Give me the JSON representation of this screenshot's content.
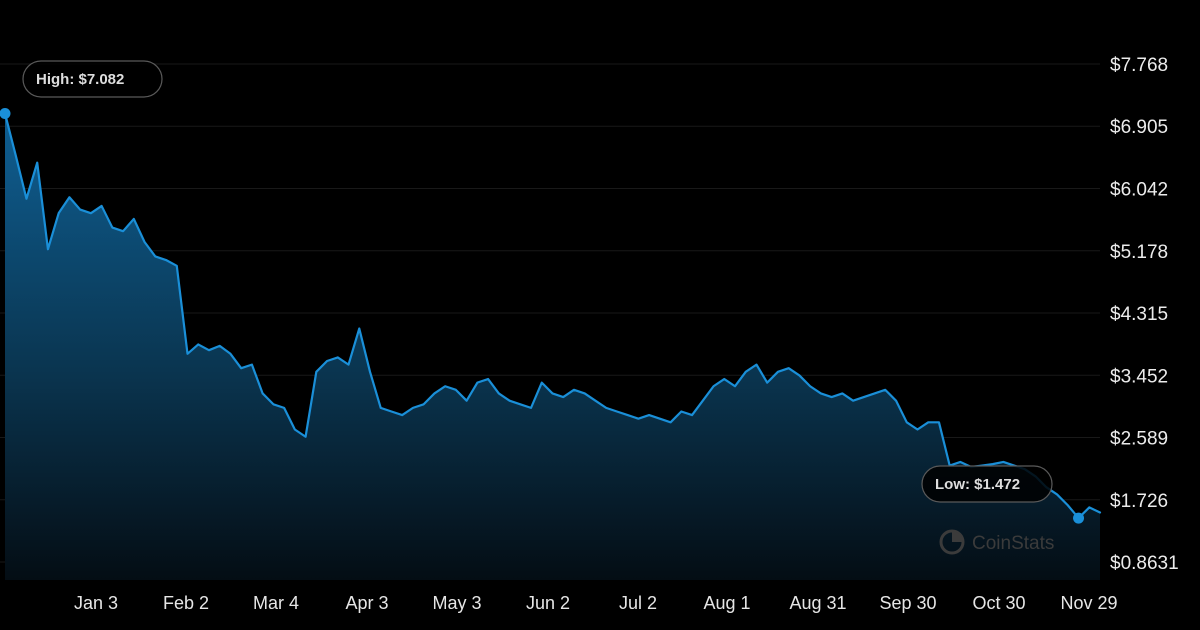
{
  "chart_data": {
    "type": "area",
    "title": "",
    "xlabel": "",
    "ylabel": "",
    "x_ticks": [
      "Jan 3",
      "Feb 2",
      "Mar 4",
      "Apr 3",
      "May 3",
      "Jun 2",
      "Jul 2",
      "Aug 1",
      "Aug 31",
      "Sep 30",
      "Oct 30",
      "Nov 29"
    ],
    "y_ticks": [
      "$7.768",
      "$6.905",
      "$6.042",
      "$5.178",
      "$4.315",
      "$3.452",
      "$2.589",
      "$1.726",
      "$0.8631"
    ],
    "ylim": [
      0.8631,
      7.768
    ],
    "grid": true,
    "series": [
      {
        "x_start": "Dec 30",
        "step_days": 3,
        "values": [
          7.082,
          6.5,
          5.9,
          6.4,
          5.2,
          5.7,
          5.92,
          5.75,
          5.7,
          5.8,
          5.5,
          5.45,
          5.62,
          5.3,
          5.1,
          5.05,
          4.97,
          3.75,
          3.88,
          3.8,
          3.86,
          3.75,
          3.55,
          3.6,
          3.2,
          3.05,
          3.0,
          2.7,
          2.6,
          3.5,
          3.65,
          3.7,
          3.6,
          4.1,
          3.5,
          3.0,
          2.95,
          2.9,
          3.0,
          3.05,
          3.2,
          3.3,
          3.25,
          3.1,
          3.35,
          3.4,
          3.2,
          3.1,
          3.05,
          3.0,
          3.35,
          3.2,
          3.15,
          3.25,
          3.2,
          3.1,
          3.0,
          2.95,
          2.9,
          2.85,
          2.9,
          2.85,
          2.8,
          2.95,
          2.9,
          3.1,
          3.3,
          3.4,
          3.3,
          3.5,
          3.6,
          3.35,
          3.5,
          3.55,
          3.45,
          3.3,
          3.2,
          3.15,
          3.2,
          3.1,
          3.15,
          3.2,
          3.25,
          3.1,
          2.8,
          2.7,
          2.8,
          2.8,
          2.2,
          2.25,
          2.18,
          2.2,
          2.22,
          2.25,
          2.2,
          2.15,
          2.05,
          1.9,
          1.8,
          1.65,
          1.472,
          1.62,
          1.55
        ]
      }
    ],
    "high": {
      "label": "High: $7.082",
      "value": 7.082
    },
    "low": {
      "label": "Low: $1.472",
      "value": 1.472
    },
    "watermark": "CoinStats",
    "colors": {
      "background": "#000000",
      "line": "#1a8fd8",
      "fill_top": "#0f5f93",
      "fill_bottom": "#040d14",
      "grid": "#191919",
      "callout_border": "#5a5a5a",
      "marker": "#1a8fd8"
    }
  }
}
